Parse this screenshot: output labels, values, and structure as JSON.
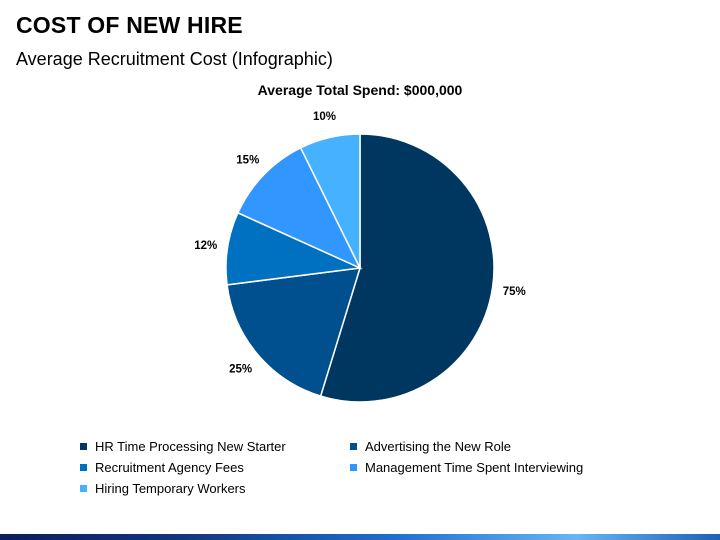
{
  "slide": {
    "title": "COST OF NEW HIRE",
    "subtitle": "Average Recruitment Cost (Infographic)"
  },
  "chart_data": {
    "type": "pie",
    "title": "Average Total Spend: $000,000",
    "slices": [
      {
        "name": "HR Time Processing New Starter",
        "label": "75%",
        "value": 75,
        "color": "#003761"
      },
      {
        "name": "Advertising the New Role",
        "label": "25%",
        "value": 25,
        "color": "#00508f"
      },
      {
        "name": "Recruitment Agency Fees",
        "label": "12%",
        "value": 12,
        "color": "#0070c0"
      },
      {
        "name": "Management Time Spent Interviewing",
        "label": "15%",
        "value": 15,
        "color": "#3296ff"
      },
      {
        "name": "Hiring Temporary Workers",
        "label": "10%",
        "value": 10,
        "color": "#46b1ff"
      }
    ],
    "legend_position": "bottom"
  }
}
